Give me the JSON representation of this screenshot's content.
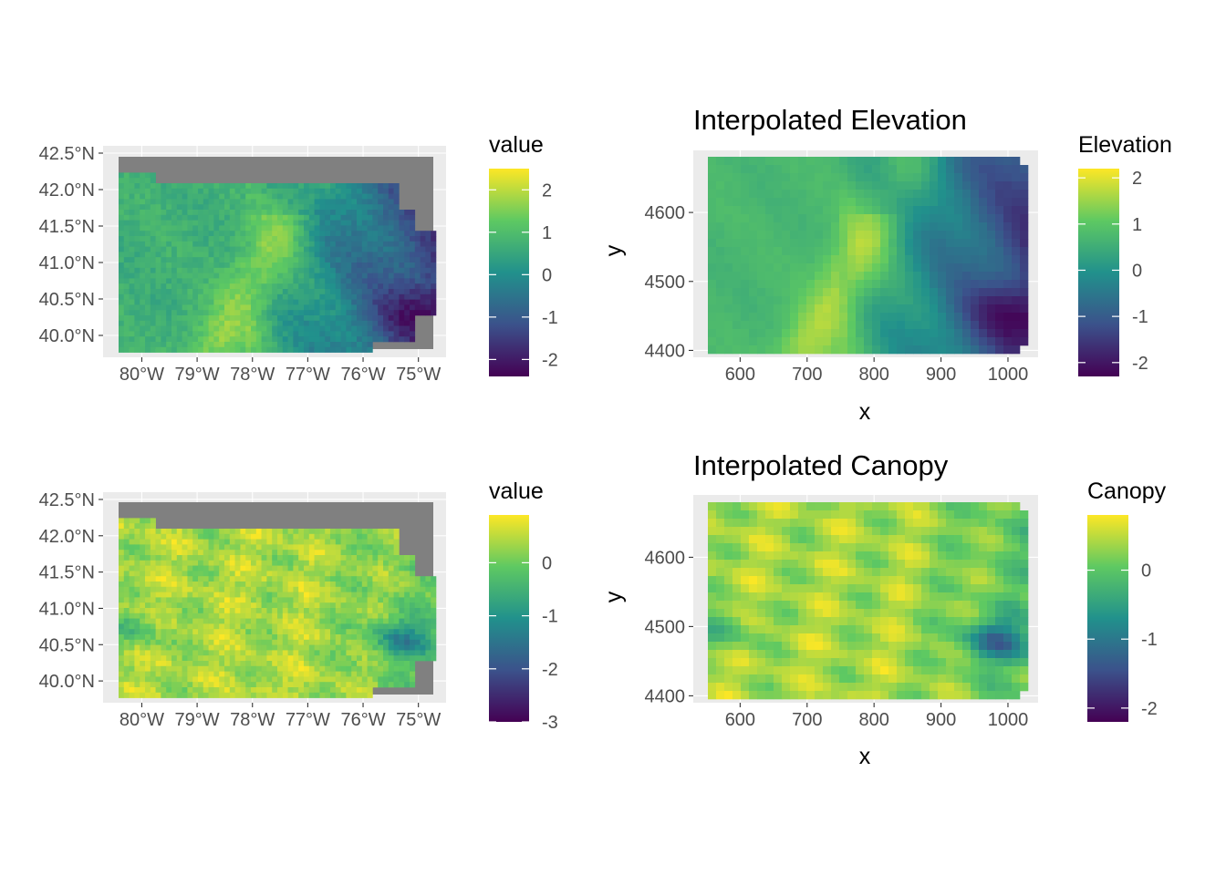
{
  "colors": {
    "viridis": [
      "#440154",
      "#3b528b",
      "#21918c",
      "#5ec962",
      "#fde725"
    ],
    "panel_bg": "#ebebeb",
    "na_fill": "#808080",
    "tick_text": "#4d4d4d"
  },
  "chart_data": [
    {
      "type": "heatmap",
      "panel": "raster-elevation",
      "title": "",
      "xlabel": "",
      "ylabel": "",
      "x_ticks": [
        "80°W",
        "79°W",
        "78°W",
        "77°W",
        "76°W",
        "75°W"
      ],
      "y_ticks": [
        "40.0°N",
        "40.5°N",
        "41.0°N",
        "41.5°N",
        "42.0°N",
        "42.5°N"
      ],
      "xlim": [
        -80.7,
        -74.5
      ],
      "ylim": [
        39.7,
        42.6
      ],
      "legend": {
        "title": "value",
        "ticks": [
          -2,
          -1,
          0,
          1,
          2
        ],
        "range": [
          -2.4,
          2.5
        ],
        "position": "right"
      },
      "grid": true,
      "na_color": "gray"
    },
    {
      "type": "heatmap",
      "panel": "interpolated-elevation",
      "title": "Interpolated Elevation",
      "xlabel": "x",
      "ylabel": "y",
      "x_ticks": [
        600,
        700,
        800,
        900,
        1000
      ],
      "y_ticks": [
        4400,
        4500,
        4600
      ],
      "xlim": [
        530,
        1045
      ],
      "ylim": [
        4390,
        4690
      ],
      "legend": {
        "title": "Elevation",
        "ticks": [
          -2,
          -1,
          0,
          1,
          2
        ],
        "range": [
          -2.3,
          2.2
        ],
        "position": "right"
      },
      "grid": true
    },
    {
      "type": "heatmap",
      "panel": "raster-canopy",
      "title": "",
      "xlabel": "",
      "ylabel": "",
      "x_ticks": [
        "80°W",
        "79°W",
        "78°W",
        "77°W",
        "76°W",
        "75°W"
      ],
      "y_ticks": [
        "40.0°N",
        "40.5°N",
        "41.0°N",
        "41.5°N",
        "42.0°N",
        "42.5°N"
      ],
      "xlim": [
        -80.7,
        -74.5
      ],
      "ylim": [
        39.7,
        42.6
      ],
      "legend": {
        "title": "value",
        "ticks": [
          -3,
          -2,
          -1,
          0
        ],
        "range": [
          -3.0,
          0.9
        ],
        "position": "right"
      },
      "grid": true,
      "na_color": "gray"
    },
    {
      "type": "heatmap",
      "panel": "interpolated-canopy",
      "title": "Interpolated Canopy",
      "xlabel": "x",
      "ylabel": "y",
      "x_ticks": [
        600,
        700,
        800,
        900,
        1000
      ],
      "y_ticks": [
        4400,
        4500,
        4600
      ],
      "xlim": [
        530,
        1045
      ],
      "ylim": [
        4390,
        4690
      ],
      "legend": {
        "title": "Canopy",
        "ticks": [
          -2,
          -1,
          0
        ],
        "range": [
          -2.2,
          0.8
        ],
        "position": "right"
      },
      "grid": true
    }
  ]
}
